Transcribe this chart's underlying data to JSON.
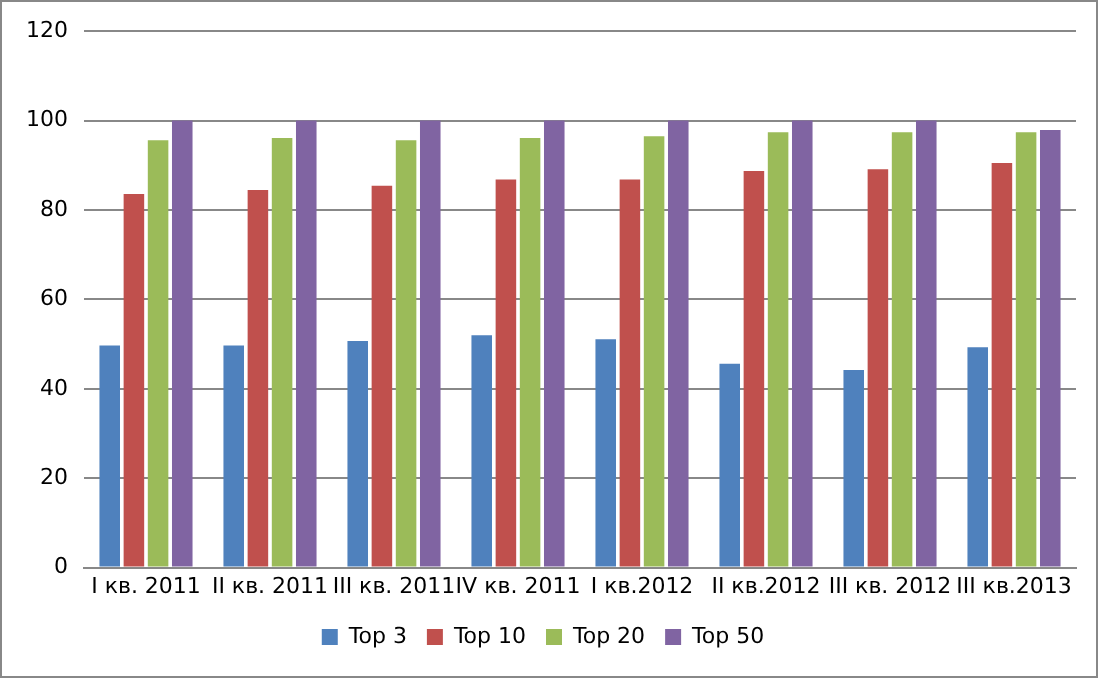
{
  "chart_data": {
    "type": "bar",
    "categories": [
      "I кв. 2011",
      "II кв. 2011",
      "III кв. 2011",
      "IV кв. 2011",
      "I кв.2012",
      "II кв.2012",
      "III кв. 2012",
      "III кв.2013"
    ],
    "series": [
      {
        "name": "Top 3",
        "color": "#4f81bd",
        "values": [
          49.7,
          49.7,
          50.7,
          52,
          51.1,
          45.6,
          44.2,
          49.3
        ]
      },
      {
        "name": "Top 10",
        "color": "#c0504d",
        "values": [
          83.6,
          84.5,
          85.4,
          86.8,
          86.8,
          88.7,
          89.1,
          90.5
        ]
      },
      {
        "name": "Top 20",
        "color": "#9bbb59",
        "values": [
          95.6,
          96.1,
          95.6,
          96.1,
          96.5,
          97.4,
          97.4,
          97.4
        ]
      },
      {
        "name": "Top 50",
        "color": "#8064a2",
        "values": [
          100,
          100,
          100,
          100,
          100,
          100,
          100,
          97.9
        ]
      }
    ],
    "ylim": [
      0,
      120
    ],
    "yticks": [
      0,
      20,
      40,
      60,
      80,
      100,
      120
    ],
    "grid": "y",
    "legend": "bottom"
  }
}
